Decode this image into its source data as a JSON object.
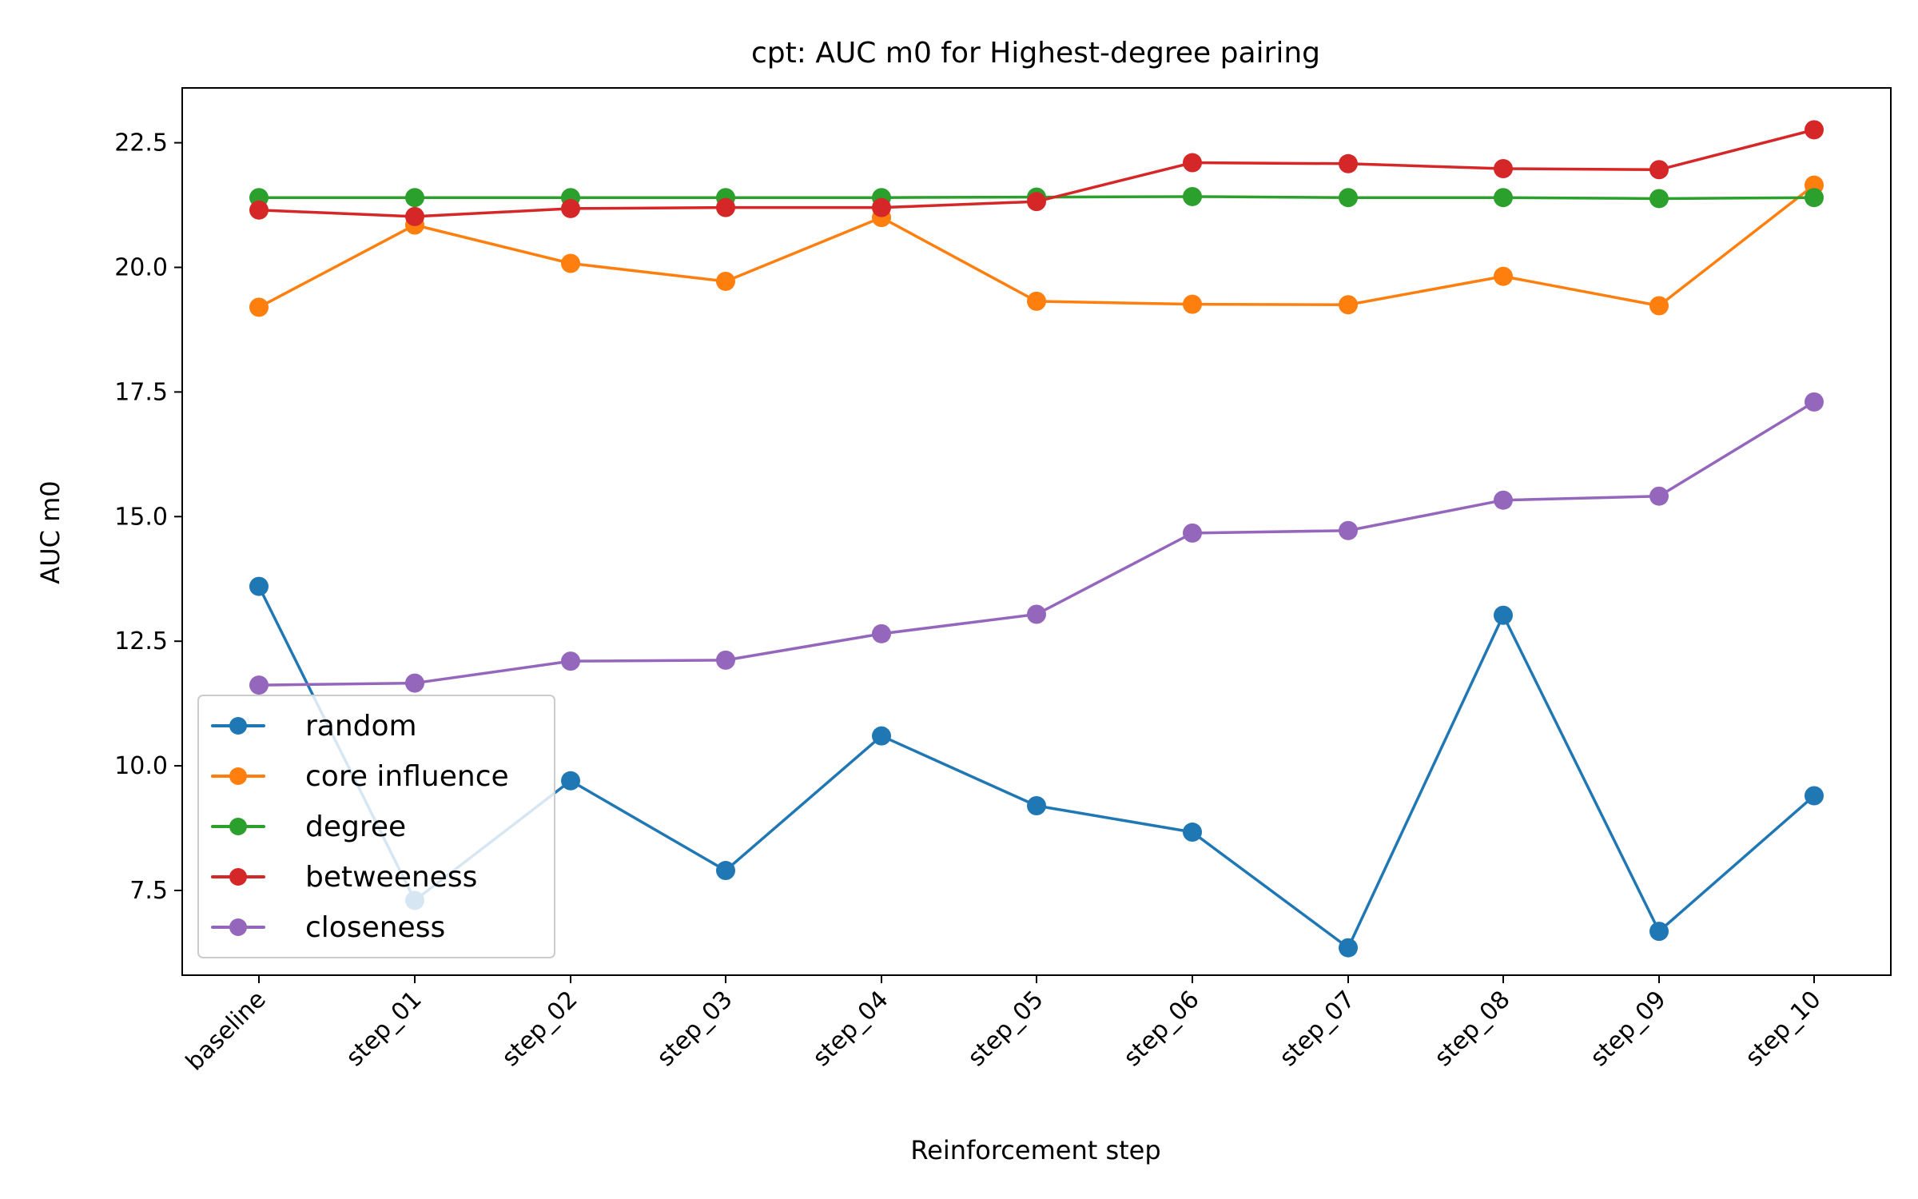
{
  "chart_data": {
    "type": "line",
    "title": "cpt: AUC m0 for Highest-degree pairing",
    "xlabel": "Reinforcement step",
    "ylabel": "AUC m0",
    "categories": [
      "baseline",
      "step_01",
      "step_02",
      "step_03",
      "step_04",
      "step_05",
      "step_06",
      "step_07",
      "step_08",
      "step_09",
      "step_10"
    ],
    "ylim": [
      5.8,
      23.6
    ],
    "yticks": [
      "7.5",
      "10.0",
      "12.5",
      "15.0",
      "17.5",
      "20.0",
      "22.5"
    ],
    "grid": false,
    "legend_position": "lower-left",
    "series": [
      {
        "name": "random",
        "color": "#1f77b4",
        "values": [
          13.6,
          7.3,
          9.7,
          7.9,
          10.6,
          9.2,
          8.67,
          6.35,
          13.02,
          6.68,
          9.4
        ]
      },
      {
        "name": "core influence",
        "color": "#ff7f0e",
        "values": [
          19.2,
          20.85,
          20.08,
          19.72,
          21.0,
          19.32,
          19.26,
          19.25,
          19.82,
          19.23,
          21.65
        ]
      },
      {
        "name": "degree",
        "color": "#2ca02c",
        "values": [
          21.4,
          21.4,
          21.4,
          21.4,
          21.4,
          21.41,
          21.42,
          21.4,
          21.4,
          21.38,
          21.4
        ]
      },
      {
        "name": "betweeness",
        "color": "#d62728",
        "values": [
          21.15,
          21.02,
          21.18,
          21.2,
          21.2,
          21.32,
          22.1,
          22.08,
          21.98,
          21.96,
          22.76
        ]
      },
      {
        "name": "closeness",
        "color": "#9467bd",
        "values": [
          11.62,
          11.66,
          12.1,
          12.12,
          12.65,
          13.04,
          14.67,
          14.72,
          15.33,
          15.41,
          17.3
        ]
      }
    ]
  }
}
